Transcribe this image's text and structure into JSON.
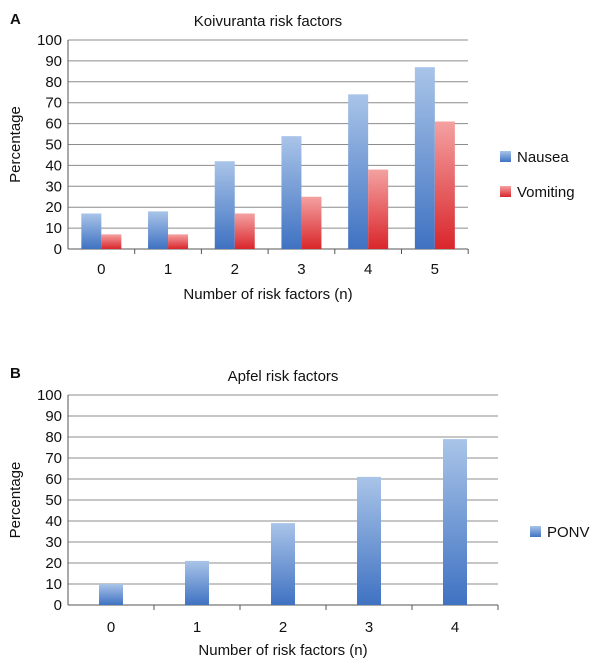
{
  "chart_data": [
    {
      "panel_label": "A",
      "type": "bar",
      "title": "Koivuranta risk factors",
      "xlabel": "Number of risk factors (n)",
      "ylabel": "Percentage",
      "ylim": [
        0,
        100
      ],
      "yticks": [
        0,
        10,
        20,
        30,
        40,
        50,
        60,
        70,
        80,
        90,
        100
      ],
      "categories": [
        "0",
        "1",
        "2",
        "3",
        "4",
        "5"
      ],
      "series": [
        {
          "name": "Nausea",
          "values": [
            17,
            18,
            42,
            54,
            74,
            87
          ],
          "color": "#4f81bd"
        },
        {
          "name": "Vomiting",
          "values": [
            7,
            7,
            17,
            25,
            38,
            61
          ],
          "color": "#e8474a"
        }
      ],
      "grid": true,
      "legend_position": "right"
    },
    {
      "panel_label": "B",
      "type": "bar",
      "title": "Apfel risk factors",
      "xlabel": "Number of risk factors (n)",
      "ylabel": "Percentage",
      "ylim": [
        0,
        100
      ],
      "yticks": [
        0,
        10,
        20,
        30,
        40,
        50,
        60,
        70,
        80,
        90,
        100
      ],
      "categories": [
        "0",
        "1",
        "2",
        "3",
        "4"
      ],
      "series": [
        {
          "name": "PONV",
          "values": [
            10,
            21,
            39,
            61,
            79
          ],
          "color": "#4f81bd"
        }
      ],
      "grid": true,
      "legend_position": "right"
    }
  ]
}
